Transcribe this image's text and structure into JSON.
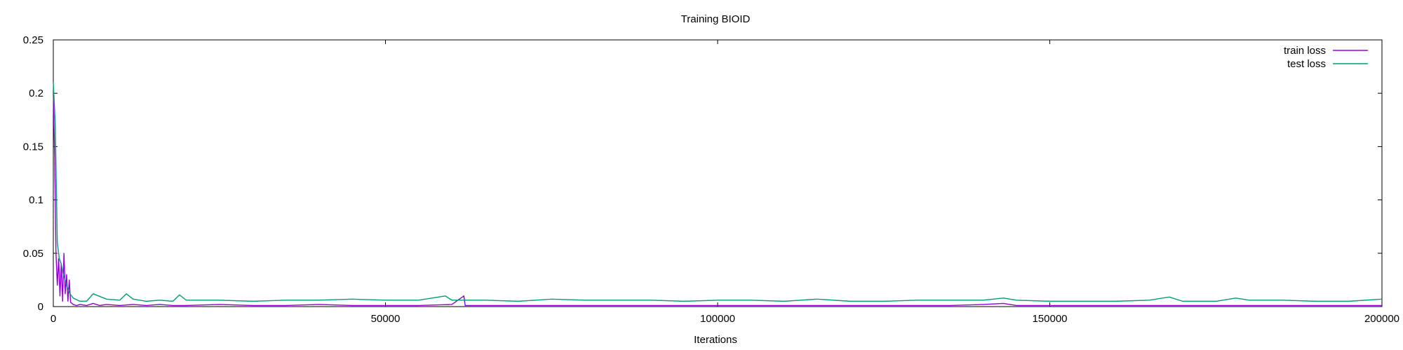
{
  "chart_data": {
    "type": "line",
    "title": "Training BIOID",
    "xlabel": "Iterations",
    "ylabel": "",
    "xlim": [
      0,
      200000
    ],
    "ylim": [
      0,
      0.25
    ],
    "x_ticks": [
      0,
      50000,
      100000,
      150000,
      200000
    ],
    "x_tick_labels": [
      "0",
      "50000",
      "100000",
      "150000",
      "200000"
    ],
    "y_ticks": [
      0,
      0.05,
      0.1,
      0.15,
      0.2,
      0.25
    ],
    "y_tick_labels": [
      "0",
      "0.05",
      "0.1",
      "0.15",
      "0.2",
      "0.25"
    ],
    "grid": false,
    "legend_position": "top-right",
    "series": [
      {
        "name": "train loss",
        "color": "#9400d3",
        "x": [
          0,
          200,
          400,
          600,
          800,
          1000,
          1200,
          1400,
          1600,
          1800,
          2000,
          2200,
          2400,
          2600,
          3000,
          3500,
          4000,
          5000,
          6000,
          7000,
          8000,
          10000,
          12000,
          14000,
          16000,
          18000,
          20000,
          25000,
          30000,
          35000,
          40000,
          45000,
          50000,
          55000,
          60000,
          61800,
          62000,
          65000,
          70000,
          75000,
          80000,
          85000,
          90000,
          95000,
          100000,
          105000,
          110000,
          115000,
          120000,
          125000,
          130000,
          135000,
          140000,
          143000,
          145000,
          150000,
          155000,
          160000,
          165000,
          170000,
          175000,
          180000,
          185000,
          190000,
          195000,
          200000
        ],
        "values": [
          0.2,
          0.14,
          0.05,
          0.02,
          0.045,
          0.01,
          0.04,
          0.005,
          0.05,
          0.012,
          0.03,
          0.005,
          0.025,
          0.004,
          0.002,
          0.001,
          0.002,
          0.001,
          0.003,
          0.001,
          0.002,
          0.001,
          0.002,
          0.001,
          0.002,
          0.001,
          0.001,
          0.002,
          0.001,
          0.001,
          0.002,
          0.001,
          0.001,
          0.001,
          0.002,
          0.01,
          0.001,
          0.001,
          0.001,
          0.001,
          0.001,
          0.001,
          0.001,
          0.001,
          0.001,
          0.001,
          0.001,
          0.001,
          0.001,
          0.001,
          0.001,
          0.001,
          0.002,
          0.003,
          0.001,
          0.001,
          0.001,
          0.001,
          0.001,
          0.001,
          0.001,
          0.001,
          0.001,
          0.001,
          0.001,
          0.001
        ]
      },
      {
        "name": "test loss",
        "color": "#009e73",
        "x": [
          0,
          300,
          600,
          900,
          1200,
          1500,
          2000,
          2500,
          3000,
          4000,
          5000,
          6000,
          8000,
          10000,
          11000,
          12000,
          14000,
          16000,
          18000,
          19000,
          20000,
          25000,
          30000,
          35000,
          40000,
          45000,
          50000,
          55000,
          59000,
          60000,
          65000,
          70000,
          75000,
          80000,
          85000,
          90000,
          95000,
          100000,
          105000,
          110000,
          115000,
          120000,
          125000,
          130000,
          135000,
          140000,
          143000,
          145000,
          150000,
          155000,
          160000,
          165000,
          168000,
          170000,
          175000,
          178000,
          180000,
          185000,
          190000,
          195000,
          200000
        ],
        "values": [
          0.21,
          0.17,
          0.06,
          0.045,
          0.04,
          0.03,
          0.02,
          0.012,
          0.008,
          0.005,
          0.005,
          0.012,
          0.007,
          0.006,
          0.012,
          0.007,
          0.005,
          0.006,
          0.005,
          0.011,
          0.006,
          0.006,
          0.005,
          0.006,
          0.006,
          0.007,
          0.006,
          0.006,
          0.01,
          0.006,
          0.006,
          0.005,
          0.007,
          0.006,
          0.006,
          0.006,
          0.005,
          0.006,
          0.006,
          0.005,
          0.007,
          0.005,
          0.005,
          0.006,
          0.006,
          0.006,
          0.008,
          0.006,
          0.005,
          0.005,
          0.005,
          0.006,
          0.009,
          0.005,
          0.005,
          0.008,
          0.006,
          0.006,
          0.005,
          0.005,
          0.007
        ]
      }
    ]
  }
}
